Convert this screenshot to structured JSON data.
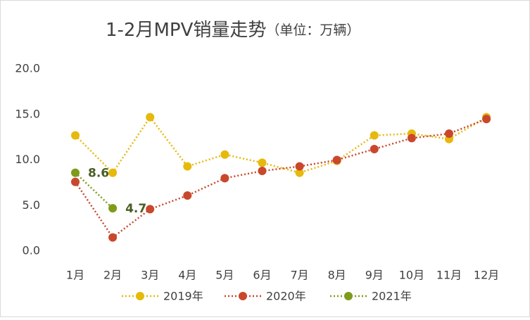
{
  "chart_data": {
    "type": "line",
    "title": "1-2月MPV销量走势",
    "subtitle": "（单位：万辆）",
    "categories": [
      "1月",
      "2月",
      "3月",
      "4月",
      "5月",
      "6月",
      "7月",
      "8月",
      "9月",
      "10月",
      "11月",
      "12月"
    ],
    "series": [
      {
        "name": "2019年",
        "color": "#e6b90c",
        "values": [
          12.7,
          8.6,
          14.7,
          9.3,
          10.6,
          9.7,
          8.6,
          9.9,
          12.7,
          12.9,
          12.3,
          14.7
        ]
      },
      {
        "name": "2020年",
        "color": "#c9482c",
        "values": [
          7.6,
          1.5,
          4.6,
          6.1,
          8.0,
          8.8,
          9.3,
          10.0,
          11.2,
          12.4,
          12.9,
          14.5
        ]
      },
      {
        "name": "2021年",
        "color": "#7f9b1c",
        "values": [
          8.6,
          4.7,
          null,
          null,
          null,
          null,
          null,
          null,
          null,
          null,
          null,
          null
        ],
        "data_labels": true
      }
    ],
    "ylim": [
      0,
      20
    ],
    "yticks": [
      {
        "value": 0,
        "label": "0.0"
      },
      {
        "value": 5,
        "label": "5.0"
      },
      {
        "value": 10,
        "label": "10.0"
      },
      {
        "value": 15,
        "label": "15.0"
      },
      {
        "value": 20,
        "label": "20.0"
      }
    ],
    "grid": false,
    "legend": "bottom"
  }
}
